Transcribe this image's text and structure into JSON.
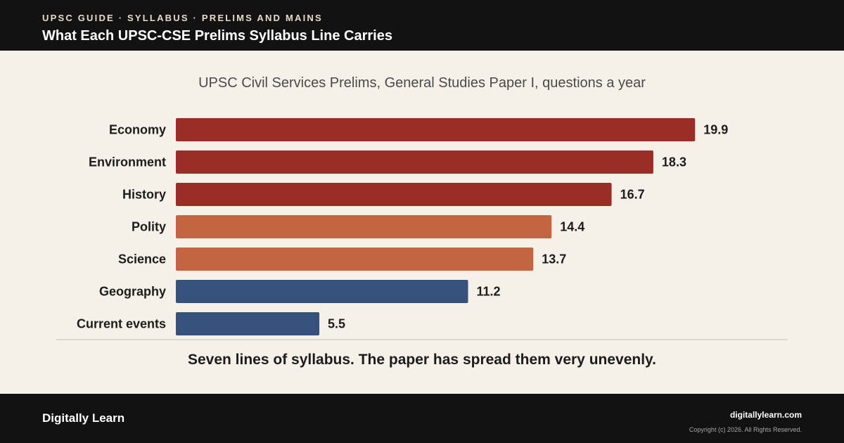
{
  "header": {
    "eyebrow": "UPSC GUIDE · SYLLABUS · PRELIMS AND MAINS",
    "title": "What Each UPSC-CSE Prelims Syllabus Line Carries"
  },
  "chart_data": {
    "type": "bar",
    "orientation": "horizontal",
    "title": "UPSC Civil Services Prelims, General Studies Paper I, questions a year",
    "categories": [
      "Economy",
      "Environment",
      "History",
      "Polity",
      "Science",
      "Geography",
      "Current events"
    ],
    "values": [
      19.9,
      18.3,
      16.7,
      14.4,
      13.7,
      11.2,
      5.5
    ],
    "bar_colors": [
      "#9b2d27",
      "#9b2d27",
      "#9b2d27",
      "#c46542",
      "#c46542",
      "#34527c",
      "#34527c"
    ],
    "xlim": [
      0,
      20
    ],
    "grid": false,
    "data_labels": true
  },
  "tagline": "Seven lines of syllabus. The paper has spread them very unevenly.",
  "footer": {
    "brand": "Digitally Learn",
    "site": "digitallylearn.com",
    "copyright": "Copyright (c) 2026. All Rights Reserved."
  }
}
